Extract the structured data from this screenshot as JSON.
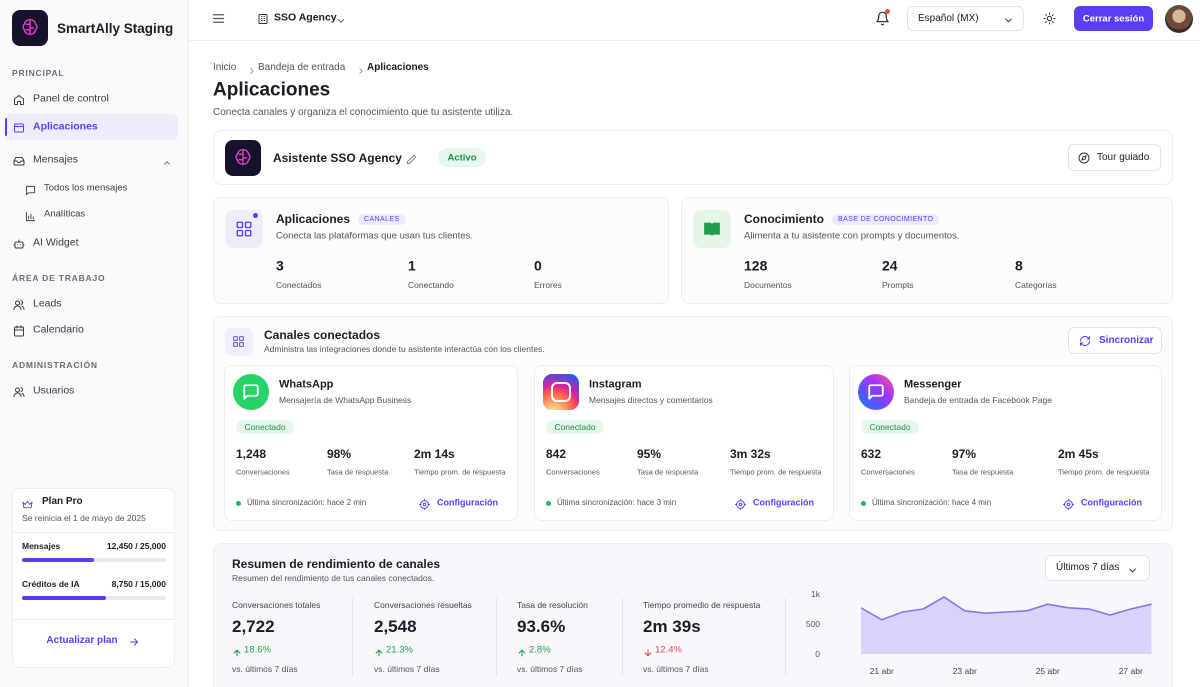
{
  "sidebar": {
    "brand": "SmartAlly Staging",
    "sections": [
      {
        "title": "PRINCIPAL",
        "items": [
          {
            "label": "Panel de control"
          },
          {
            "label": "Aplicaciones",
            "active": true
          },
          {
            "label": "Mensajes",
            "expanded": true,
            "children": [
              {
                "label": "Todos los mensajes"
              },
              {
                "label": "Analíticas"
              }
            ]
          },
          {
            "label": "AI Widget"
          }
        ]
      },
      {
        "title": "ÁREA DE TRABAJO",
        "items": [
          {
            "label": "Leads"
          },
          {
            "label": "Calendario"
          }
        ]
      },
      {
        "title": "ADMINISTRACIÓN",
        "items": [
          {
            "label": "Usuarios"
          }
        ]
      }
    ]
  },
  "plan": {
    "title": "Plan Pro",
    "subtitle": "Se reinicia el 1 de mayo de 2025",
    "usage": [
      {
        "label": "Mensajes",
        "value_label": "12,450 / 25,000",
        "used": 12450,
        "limit": 25000
      },
      {
        "label": "Créditos de IA",
        "value_label": "8,750 / 15,000",
        "used": 8750,
        "limit": 15000
      }
    ],
    "button": "Actualizar plan"
  },
  "topbar": {
    "org": "SSO Agency",
    "language": "Español (MX)",
    "logout": "Cerrar sesión"
  },
  "breadcrumb": [
    "Inicio",
    "Bandeja de entrada",
    "Aplicaciones"
  ],
  "page": {
    "title": "Aplicaciones",
    "subtitle": "Conecta canales y organiza el conocimiento que tu asistente utiliza."
  },
  "assistant": {
    "name": "Asistente SSO Agency",
    "status": "Activo",
    "tour": "Tour guiado"
  },
  "summary": [
    {
      "title": "Aplicaciones",
      "badge": "CANALES",
      "description": "Conecta las plataformas que usan tus clientes.",
      "stats": [
        {
          "value": 3,
          "label": "Conectados"
        },
        {
          "value": 1,
          "label": "Conectando"
        },
        {
          "value": 0,
          "label": "Errores"
        }
      ]
    },
    {
      "title": "Conocimiento",
      "badge": "BASE DE CONOCIMIENTO",
      "description": "Alimenta a tu asistente con prompts y documentos.",
      "stats": [
        {
          "value": 128,
          "label": "Documentos"
        },
        {
          "value": 24,
          "label": "Prompts"
        },
        {
          "value": 8,
          "label": "Categorías"
        }
      ]
    }
  ],
  "channels": {
    "title": "Canales conectados",
    "subtitle": "Administra las integraciones donde tu asistente interactúa con los clientes.",
    "sync_button": "Sincronizar",
    "items": [
      {
        "name": "WhatsApp",
        "description": "Mensajería de WhatsApp Business",
        "status": "Conectado",
        "stats": [
          {
            "value": "1,248",
            "label": "Conversaciones"
          },
          {
            "value": "98%",
            "label": "Tasa de respuesta"
          },
          {
            "value": "2m 14s",
            "label": "Tiempo prom. de respuesta"
          }
        ],
        "sync": "Última sincronización: hace 2 min",
        "config": "Configuración"
      },
      {
        "name": "Instagram",
        "description": "Mensajes directos y comentarios",
        "status": "Conectado",
        "stats": [
          {
            "value": "842",
            "label": "Conversaciones"
          },
          {
            "value": "95%",
            "label": "Tasa de respuesta"
          },
          {
            "value": "3m 32s",
            "label": "Tiempo prom. de respuesta"
          }
        ],
        "sync": "Última sincronización: hace 3 min",
        "config": "Configuración"
      },
      {
        "name": "Messenger",
        "description": "Bandeja de entrada de Facebook Page",
        "status": "Conectado",
        "stats": [
          {
            "value": "632",
            "label": "Conversaciones"
          },
          {
            "value": "97%",
            "label": "Tasa de respuesta"
          },
          {
            "value": "2m 45s",
            "label": "Tiempo prom. de respuesta"
          }
        ],
        "sync": "Última sincronización: hace 4 min",
        "config": "Configuración"
      }
    ]
  },
  "performance": {
    "title": "Resumen de rendimiento de canales",
    "subtitle": "Resumen del rendimiento de tus canales conectados.",
    "range": "Últimos 7 días",
    "kpis": [
      {
        "label": "Conversaciones totales",
        "value": "2,722",
        "change": "18.6%",
        "direction": "up",
        "compare": "vs. últimos 7 días"
      },
      {
        "label": "Conversaciones resueltas",
        "value": "2,548",
        "change": "21.3%",
        "direction": "up",
        "compare": "vs. últimos 7 días"
      },
      {
        "label": "Tasa de resolución",
        "value": "93.6%",
        "change": "2.8%",
        "direction": "up",
        "compare": "vs. últimos 7 días"
      },
      {
        "label": "Tiempo promedio de respuesta",
        "value": "2m 39s",
        "change": "12.4%",
        "direction": "down",
        "compare": "vs. últimos 7 días"
      }
    ],
    "chart": {
      "type": "area",
      "categories": [
        null,
        "21 abr",
        null,
        null,
        null,
        "23 abr",
        null,
        null,
        null,
        "25 abr",
        null,
        null,
        null,
        "27 abr",
        null
      ],
      "values": [
        770,
        570,
        700,
        750,
        950,
        720,
        680,
        700,
        720,
        830,
        770,
        750,
        650,
        750,
        830
      ],
      "ylim": [
        0,
        1000
      ],
      "yticks": [
        0,
        500,
        {
          "value": 1000,
          "label": "1k"
        }
      ],
      "color": "#8576f0",
      "grid": false
    }
  }
}
